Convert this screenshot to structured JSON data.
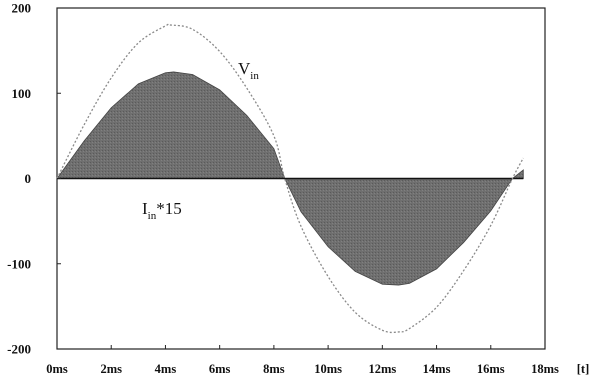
{
  "chart_data": {
    "type": "line",
    "title": "",
    "xlabel": "[t]",
    "ylabel": "",
    "xlim": [
      0,
      18
    ],
    "ylim": [
      -200,
      200
    ],
    "x_unit": "ms",
    "x_ticks": [
      0,
      2,
      4,
      6,
      8,
      10,
      12,
      14,
      16,
      18
    ],
    "x_tick_labels": [
      "0ms",
      "2ms",
      "4ms",
      "6ms",
      "8ms",
      "10ms",
      "12ms",
      "14ms",
      "16ms",
      "18ms"
    ],
    "y_ticks": [
      200,
      100,
      0,
      -100,
      -200
    ],
    "y_tick_labels": [
      "200",
      "100",
      "0",
      "-100",
      "-200"
    ],
    "grid": false,
    "legend": "none",
    "series": [
      {
        "name": "V_in",
        "label_main": "V",
        "label_sub": "in",
        "style": "dotted line",
        "color": "#8a8a8a",
        "x": [
          0,
          1,
          2,
          3,
          4,
          4.2,
          5,
          6,
          7,
          8,
          8.4,
          9,
          10,
          11,
          12,
          12.6,
          13,
          14,
          15,
          16,
          16.8,
          17.2
        ],
        "y": [
          0,
          63,
          118,
          159,
          179,
          180,
          175,
          149,
          106,
          50,
          0,
          -56,
          -115,
          -157,
          -178,
          -180,
          -176,
          -151,
          -108,
          -55,
          0,
          24
        ]
      },
      {
        "name": "I_in*15",
        "label_main": "I",
        "label_sub": "in",
        "label_suffix": "*15",
        "style": "filled area to zero",
        "color": "#6b6b6b",
        "x": [
          0,
          1,
          2,
          3,
          4,
          4.3,
          5,
          6,
          7,
          8,
          8.4,
          9,
          10,
          11,
          12,
          12.6,
          13,
          14,
          15,
          16,
          16.8,
          17.2
        ],
        "y": [
          0,
          44,
          83,
          111,
          124,
          125,
          122,
          104,
          74,
          35,
          0,
          -39,
          -80,
          -109,
          -124,
          -125,
          -123,
          -106,
          -75,
          -38,
          0,
          10
        ]
      }
    ]
  }
}
